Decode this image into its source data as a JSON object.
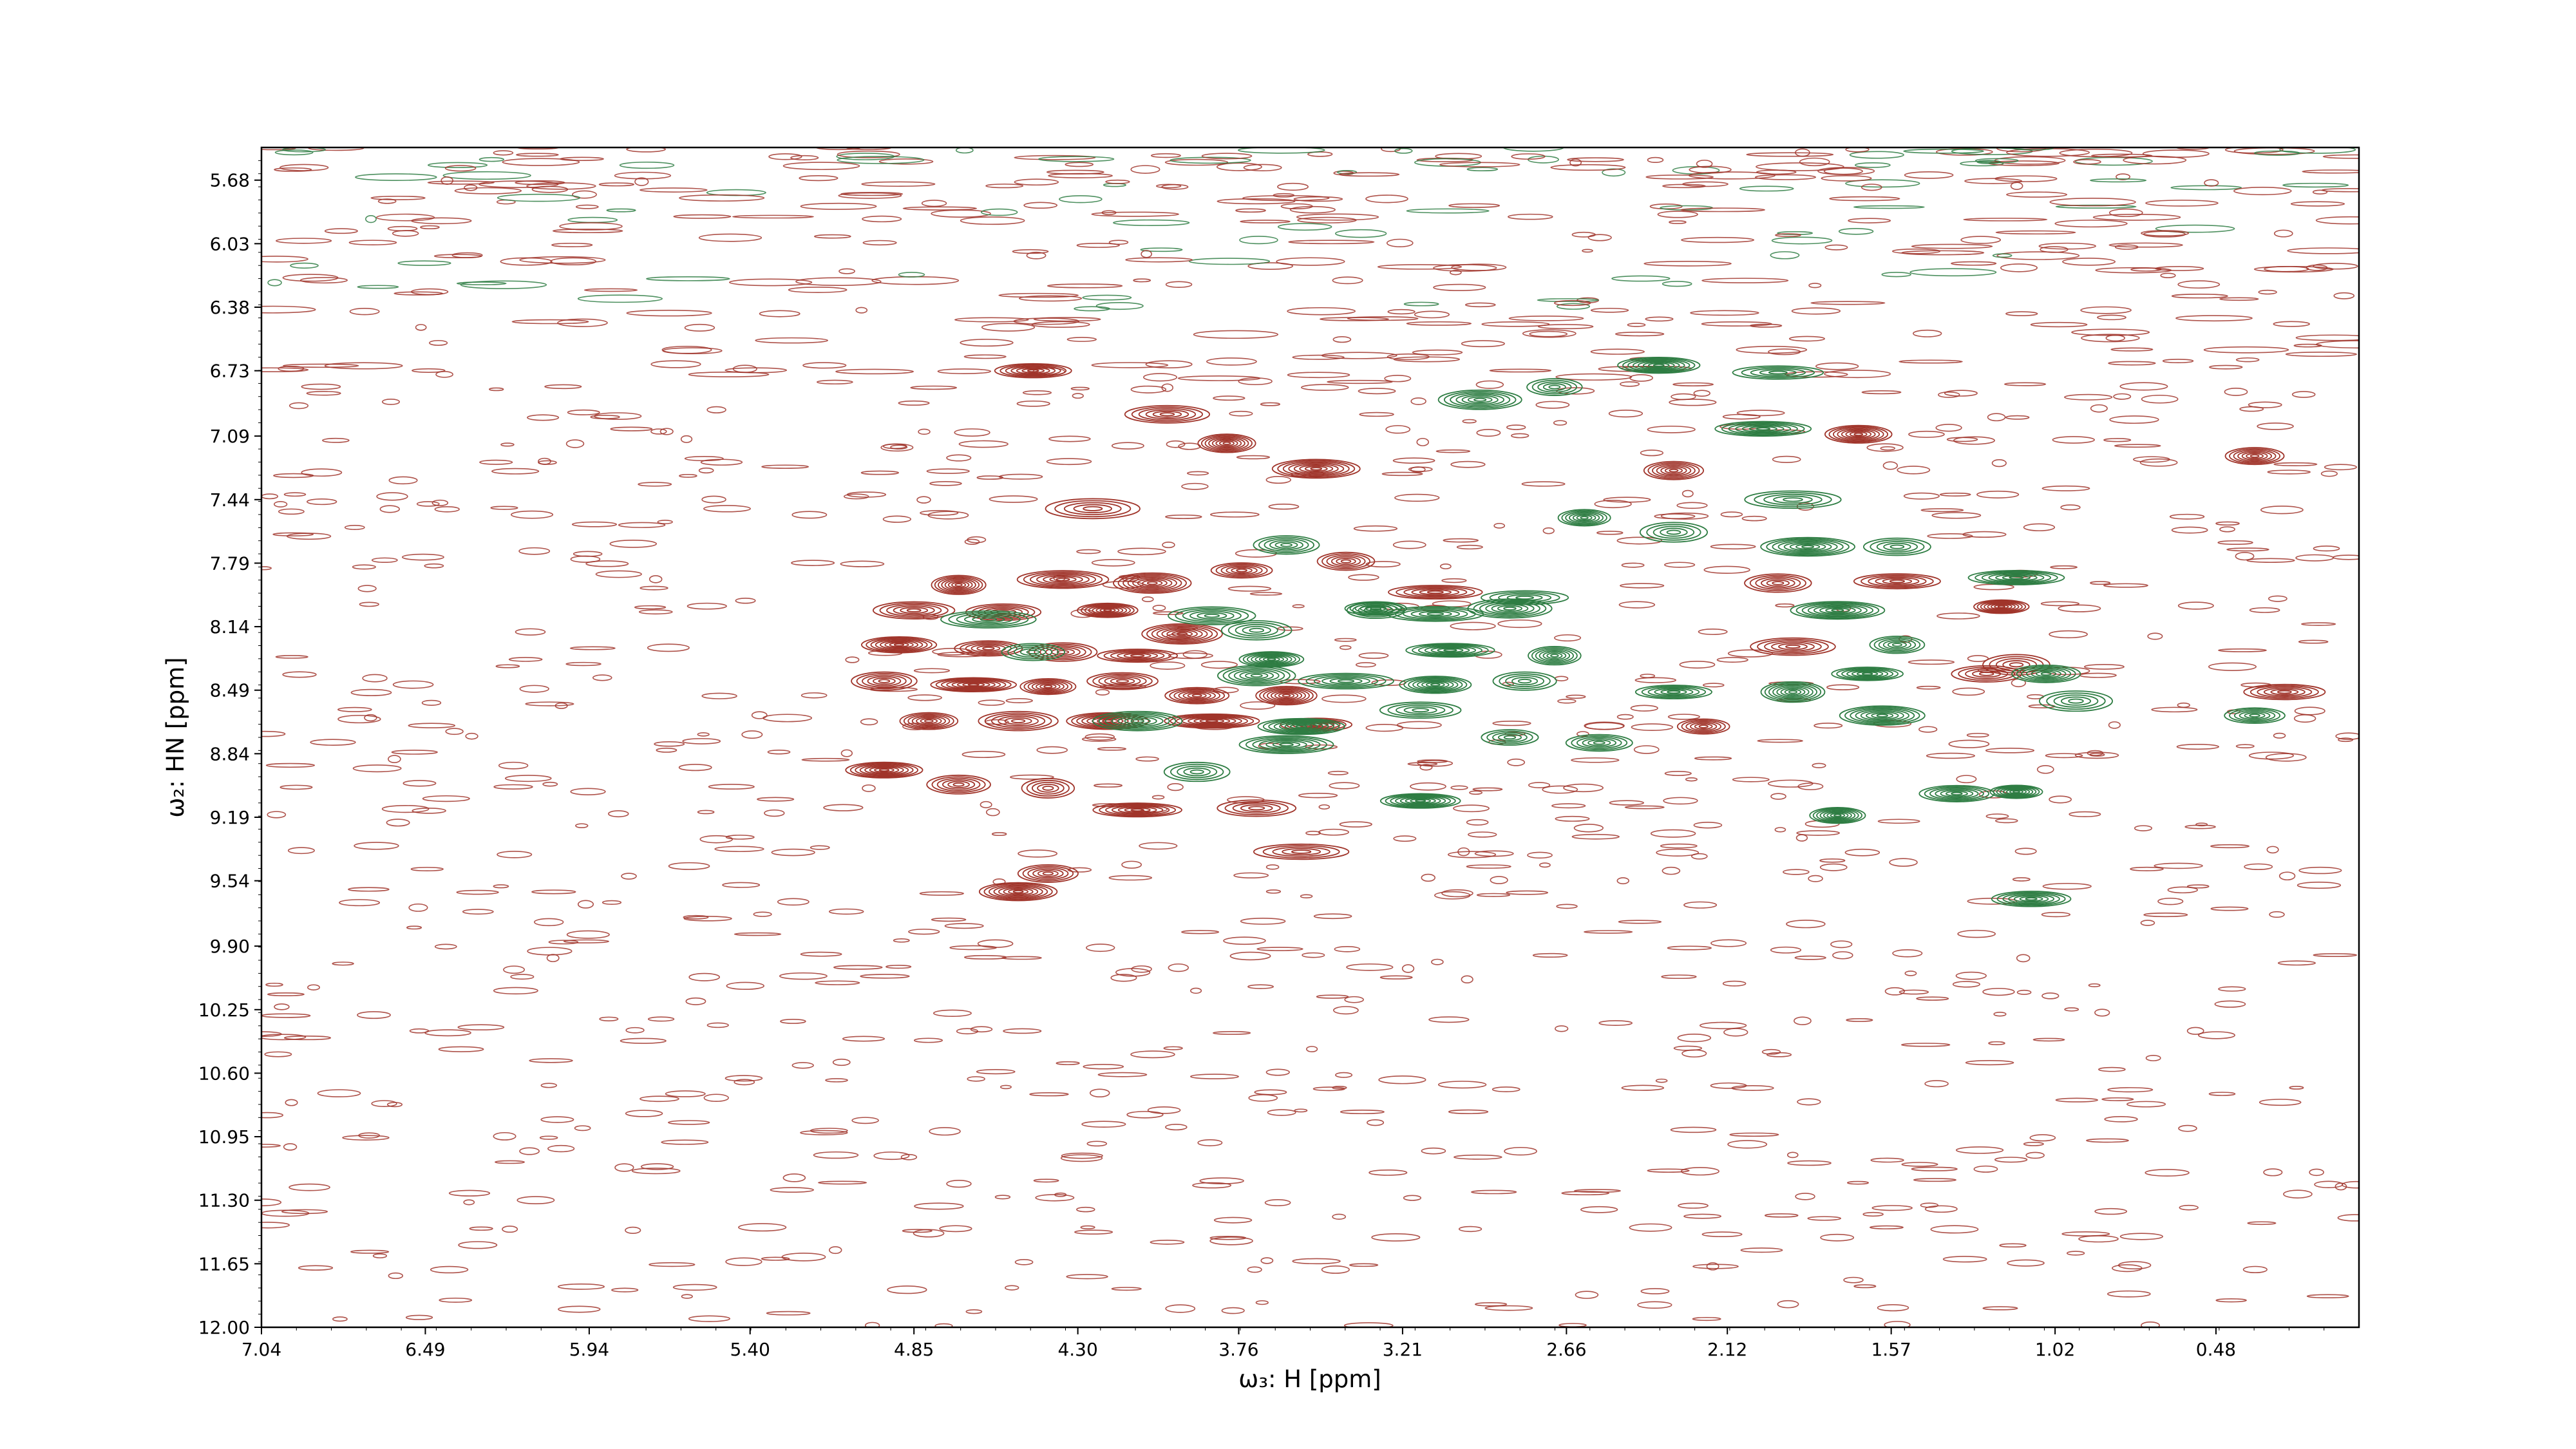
{
  "chart_data": {
    "type": "contour",
    "title": "",
    "xlabel": "ω₃: H [ppm]",
    "ylabel": "ω₂: HN [ppm]",
    "xlim": [
      7.04,
      0.0
    ],
    "ylim": [
      12.0,
      5.5
    ],
    "x_inverted": true,
    "y_inverted": true,
    "x_ticks": [
      "7.04",
      "6.49",
      "5.94",
      "5.40",
      "4.85",
      "4.30",
      "3.76",
      "3.21",
      "2.66",
      "2.12",
      "1.57",
      "1.02",
      "0.48"
    ],
    "y_ticks": [
      "5.68",
      "6.03",
      "6.38",
      "6.73",
      "7.09",
      "7.44",
      "7.79",
      "8.14",
      "8.49",
      "8.84",
      "9.19",
      "9.54",
      "9.90",
      "10.25",
      "10.60",
      "10.95",
      "11.30",
      "11.65",
      "12.00"
    ],
    "grid": false,
    "legend": "none",
    "series": [
      {
        "color": "#a0342a",
        "peaks": [
          [
            4.45,
            6.73
          ],
          [
            4.0,
            6.97
          ],
          [
            3.8,
            7.13
          ],
          [
            3.5,
            7.27
          ],
          [
            4.25,
            7.49
          ],
          [
            4.7,
            7.91
          ],
          [
            4.35,
            7.88
          ],
          [
            4.05,
            7.9
          ],
          [
            3.75,
            7.83
          ],
          [
            3.4,
            7.78
          ],
          [
            3.1,
            7.95
          ],
          [
            4.85,
            8.05
          ],
          [
            4.55,
            8.06
          ],
          [
            4.2,
            8.05
          ],
          [
            3.95,
            8.18
          ],
          [
            4.9,
            8.24
          ],
          [
            4.6,
            8.26
          ],
          [
            4.35,
            8.28
          ],
          [
            4.1,
            8.3
          ],
          [
            4.95,
            8.44
          ],
          [
            4.65,
            8.46
          ],
          [
            4.4,
            8.47
          ],
          [
            4.15,
            8.44
          ],
          [
            3.9,
            8.52
          ],
          [
            3.6,
            8.52
          ],
          [
            4.8,
            8.66
          ],
          [
            4.5,
            8.66
          ],
          [
            4.2,
            8.66
          ],
          [
            3.85,
            8.66
          ],
          [
            3.5,
            8.68
          ],
          [
            4.95,
            8.93
          ],
          [
            4.7,
            9.01
          ],
          [
            4.4,
            9.03
          ],
          [
            4.1,
            9.15
          ],
          [
            3.7,
            9.14
          ],
          [
            3.55,
            9.38
          ],
          [
            4.5,
            9.6
          ],
          [
            4.4,
            9.5
          ],
          [
            2.2,
            8.69
          ],
          [
            1.95,
            7.9
          ],
          [
            1.9,
            8.25
          ],
          [
            1.55,
            7.89
          ],
          [
            1.2,
            8.03
          ],
          [
            1.15,
            8.35
          ],
          [
            1.25,
            8.4
          ],
          [
            0.25,
            8.5
          ],
          [
            2.3,
            7.28
          ],
          [
            1.68,
            7.08
          ],
          [
            0.35,
            7.2
          ]
        ]
      },
      {
        "color": "#2e7d43",
        "peaks": [
          [
            3.6,
            7.69
          ],
          [
            3.85,
            8.08
          ],
          [
            3.7,
            8.16
          ],
          [
            3.3,
            8.04
          ],
          [
            3.1,
            8.07
          ],
          [
            2.85,
            8.04
          ],
          [
            2.8,
            7.98
          ],
          [
            3.05,
            8.27
          ],
          [
            2.7,
            8.3
          ],
          [
            3.4,
            8.44
          ],
          [
            3.1,
            8.46
          ],
          [
            2.8,
            8.44
          ],
          [
            3.15,
            8.6
          ],
          [
            2.85,
            8.75
          ],
          [
            3.55,
            8.69
          ],
          [
            3.65,
            8.32
          ],
          [
            3.7,
            8.41
          ],
          [
            3.6,
            8.79
          ],
          [
            2.55,
            8.78
          ],
          [
            2.35,
            6.7
          ],
          [
            2.7,
            6.82
          ],
          [
            2.95,
            6.89
          ],
          [
            1.95,
            6.74
          ],
          [
            2.0,
            7.05
          ],
          [
            1.9,
            7.44
          ],
          [
            2.6,
            7.54
          ],
          [
            2.3,
            7.62
          ],
          [
            1.85,
            7.7
          ],
          [
            1.55,
            7.7
          ],
          [
            1.75,
            8.05
          ],
          [
            1.55,
            8.24
          ],
          [
            1.65,
            8.4
          ],
          [
            1.9,
            8.5
          ],
          [
            2.3,
            8.5
          ],
          [
            1.6,
            8.63
          ],
          [
            1.75,
            9.18
          ],
          [
            1.35,
            9.06
          ],
          [
            1.15,
            9.05
          ],
          [
            1.15,
            7.87
          ],
          [
            1.05,
            8.4
          ],
          [
            0.35,
            8.63
          ],
          [
            0.95,
            8.55
          ],
          [
            1.1,
            9.64
          ],
          [
            3.3,
            8.05
          ],
          [
            3.9,
            8.94
          ],
          [
            3.15,
            9.1
          ],
          [
            4.1,
            8.66
          ],
          [
            4.6,
            8.1
          ],
          [
            4.45,
            8.28
          ]
        ]
      }
    ]
  }
}
